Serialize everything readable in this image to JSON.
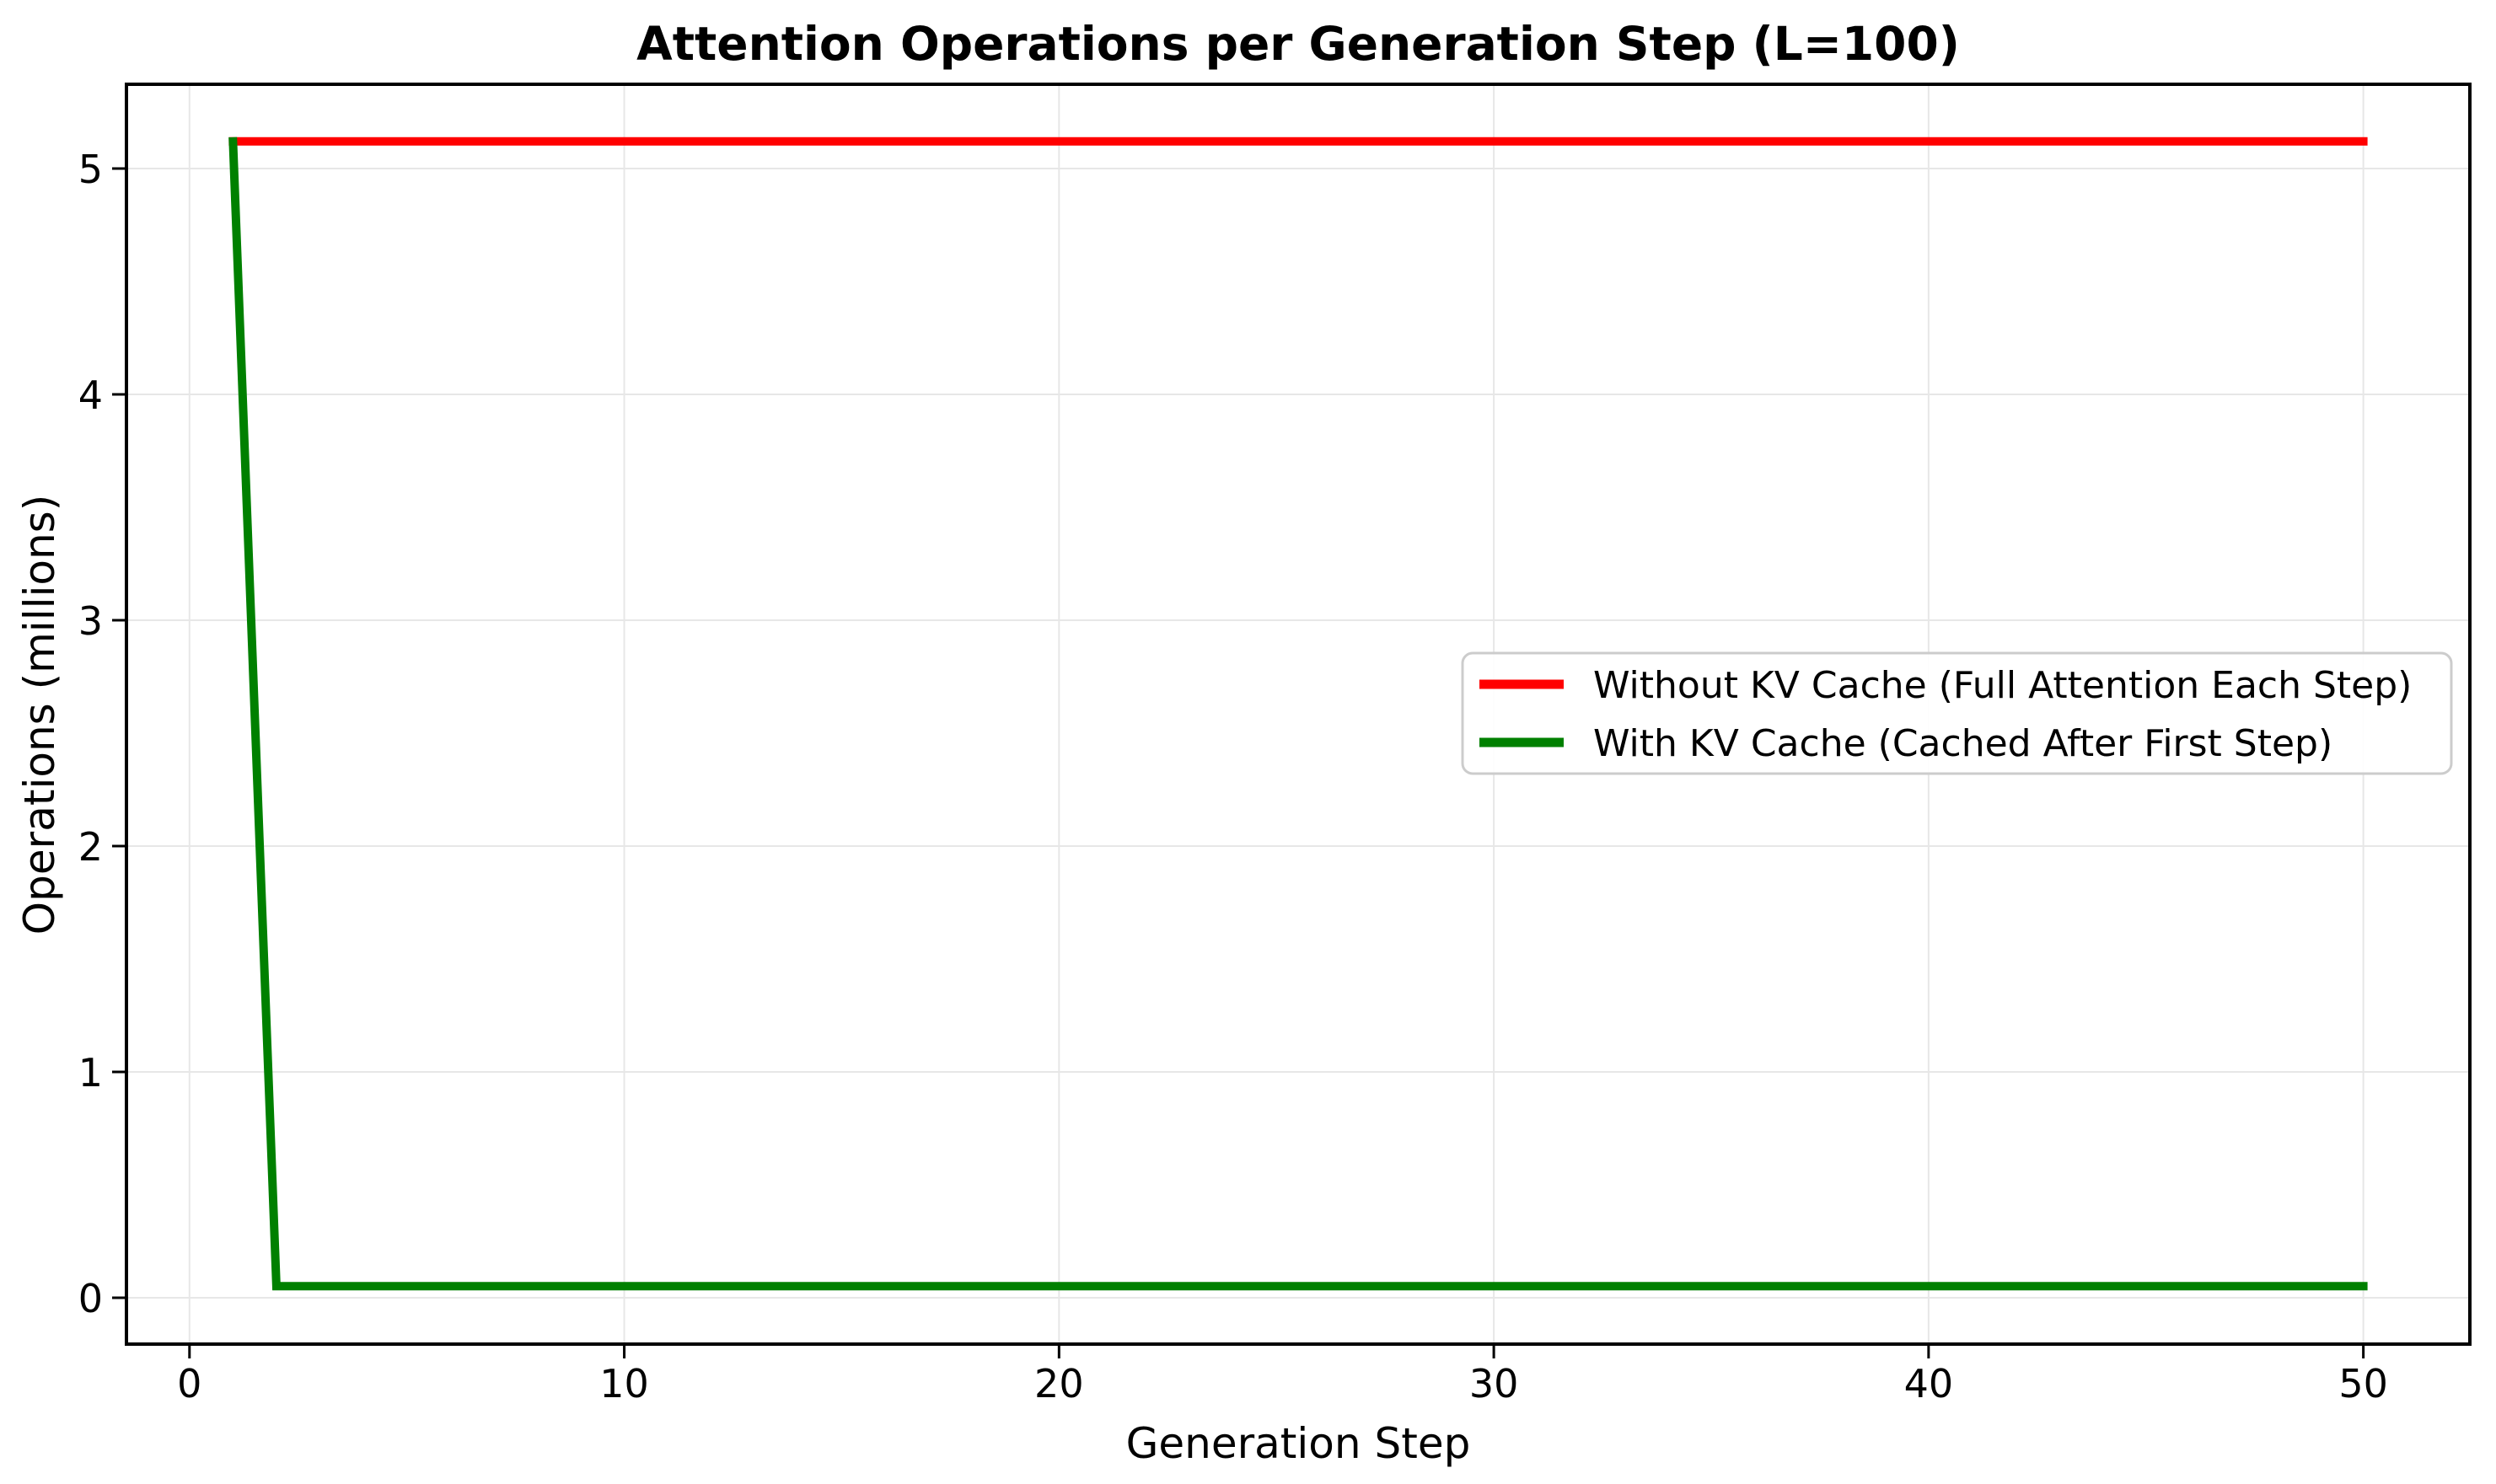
{
  "figure": {
    "background": "#ffffff",
    "text_color": "#000000"
  },
  "chart_data": {
    "type": "line",
    "title": "Attention Operations per Generation Step (L=100)",
    "xlabel": "Generation Step",
    "ylabel": "Operations (millions)",
    "xlim": [
      -1.45,
      52.45
    ],
    "ylim": [
      -0.205,
      5.373
    ],
    "x_ticks": [
      0,
      10,
      20,
      30,
      40,
      50
    ],
    "y_ticks": [
      0,
      1,
      2,
      3,
      4,
      5
    ],
    "grid": true,
    "grid_color": "#e7e7e7",
    "legend": {
      "position": "center right",
      "border_color": "#cccccc",
      "background": "#ffffff"
    },
    "x": [
      1,
      2,
      3,
      4,
      5,
      6,
      7,
      8,
      9,
      10,
      11,
      12,
      13,
      14,
      15,
      16,
      17,
      18,
      19,
      20,
      21,
      22,
      23,
      24,
      25,
      26,
      27,
      28,
      29,
      30,
      31,
      32,
      33,
      34,
      35,
      36,
      37,
      38,
      39,
      40,
      41,
      42,
      43,
      44,
      45,
      46,
      47,
      48,
      49,
      50
    ],
    "series": [
      {
        "name": "Without KV Cache (Full Attention Each Step)",
        "color": "#ff0000",
        "values": [
          5.12,
          5.12,
          5.12,
          5.12,
          5.12,
          5.12,
          5.12,
          5.12,
          5.12,
          5.12,
          5.12,
          5.12,
          5.12,
          5.12,
          5.12,
          5.12,
          5.12,
          5.12,
          5.12,
          5.12,
          5.12,
          5.12,
          5.12,
          5.12,
          5.12,
          5.12,
          5.12,
          5.12,
          5.12,
          5.12,
          5.12,
          5.12,
          5.12,
          5.12,
          5.12,
          5.12,
          5.12,
          5.12,
          5.12,
          5.12,
          5.12,
          5.12,
          5.12,
          5.12,
          5.12,
          5.12,
          5.12,
          5.12,
          5.12,
          5.12
        ]
      },
      {
        "name": "With KV Cache (Cached After First Step)",
        "color": "#008000",
        "values": [
          5.12,
          0.0512,
          0.0512,
          0.0512,
          0.0512,
          0.0512,
          0.0512,
          0.0512,
          0.0512,
          0.0512,
          0.0512,
          0.0512,
          0.0512,
          0.0512,
          0.0512,
          0.0512,
          0.0512,
          0.0512,
          0.0512,
          0.0512,
          0.0512,
          0.0512,
          0.0512,
          0.0512,
          0.0512,
          0.0512,
          0.0512,
          0.0512,
          0.0512,
          0.0512,
          0.0512,
          0.0512,
          0.0512,
          0.0512,
          0.0512,
          0.0512,
          0.0512,
          0.0512,
          0.0512,
          0.0512,
          0.0512,
          0.0512,
          0.0512,
          0.0512,
          0.0512,
          0.0512,
          0.0512,
          0.0512,
          0.0512,
          0.0512
        ]
      }
    ]
  }
}
